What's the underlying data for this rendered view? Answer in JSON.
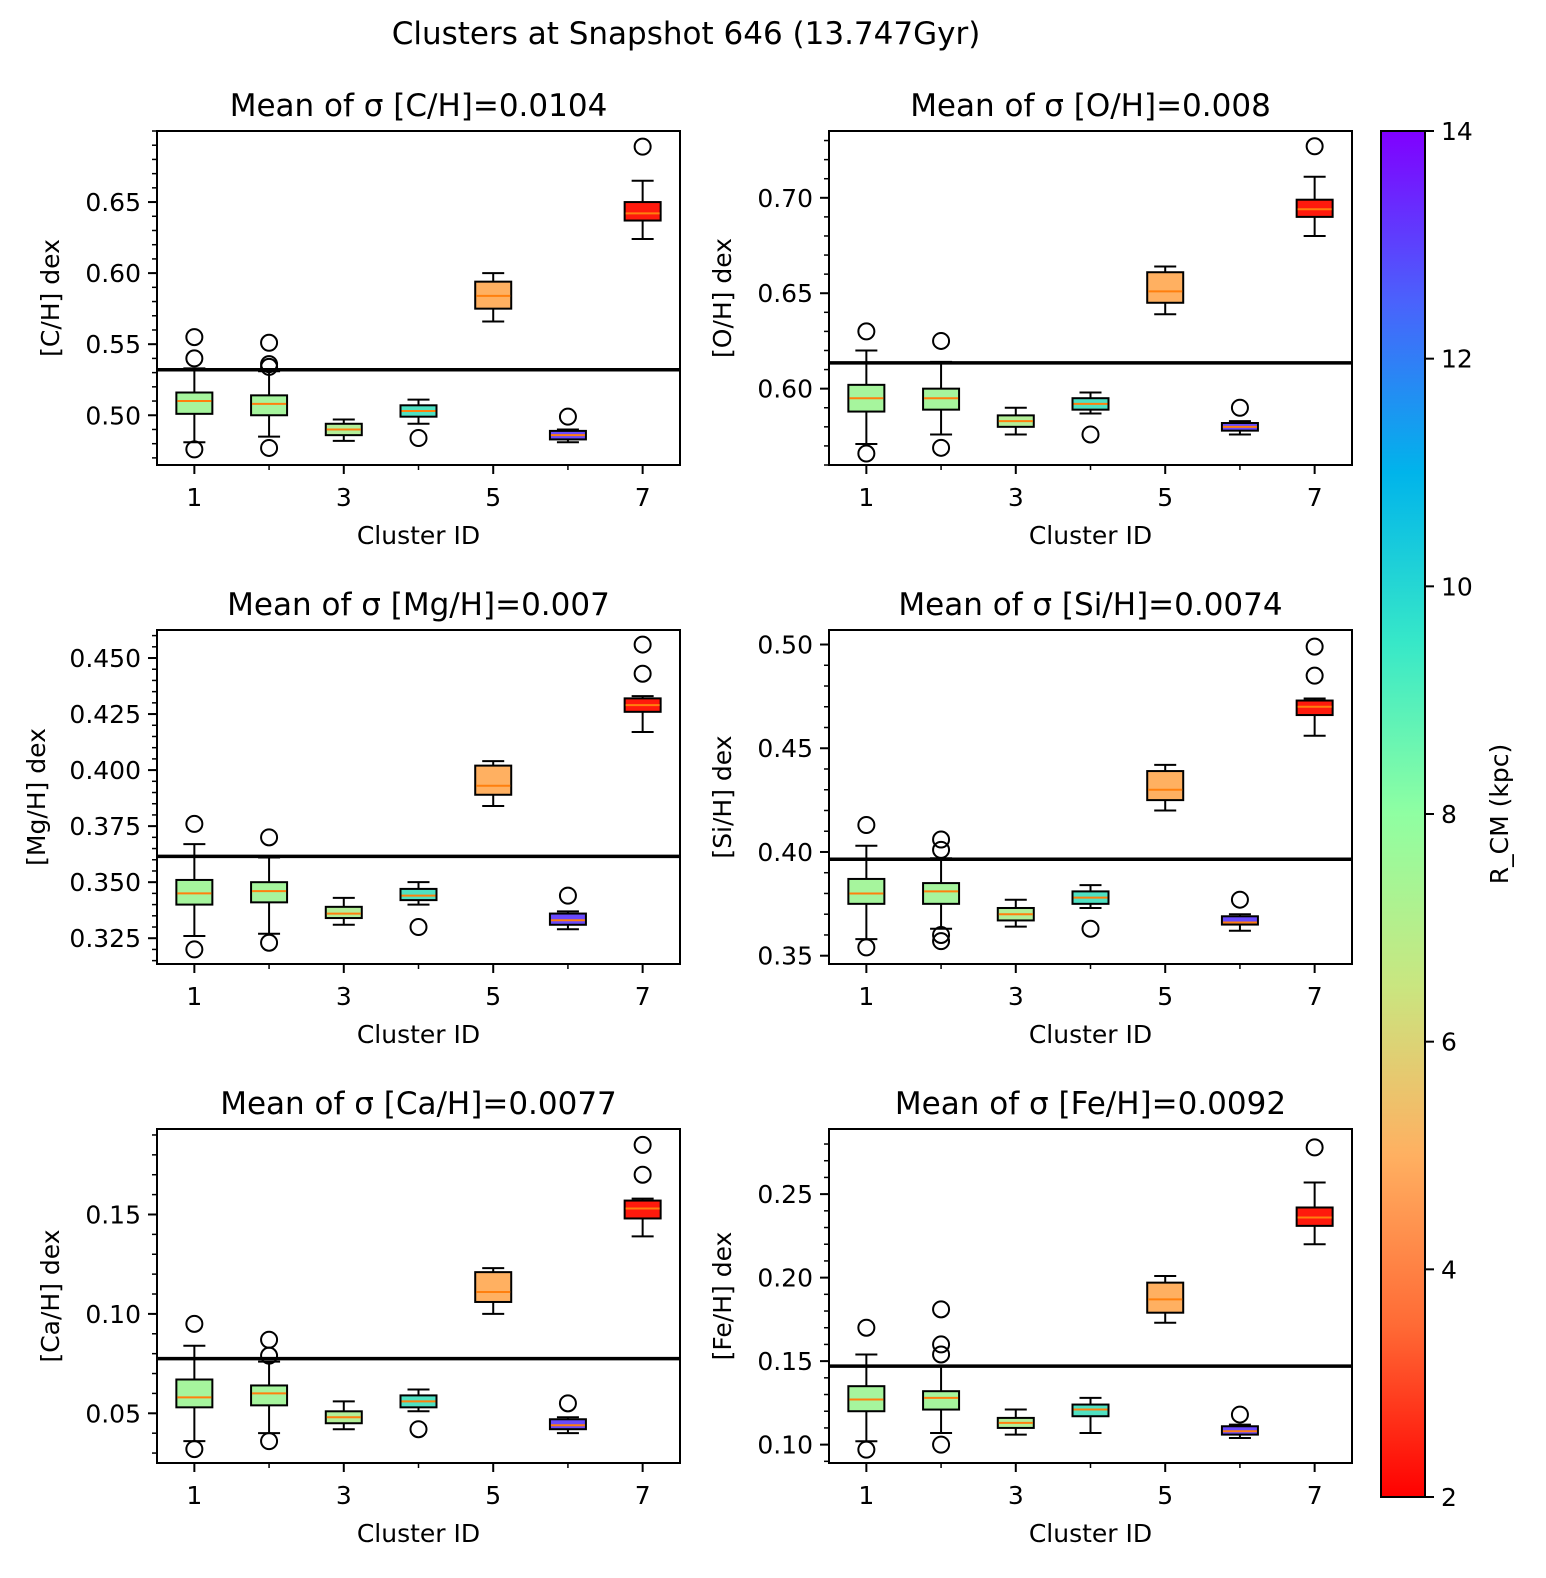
{
  "suptitle": "Clusters at Snapshot 646 (13.747Gyr)",
  "colorbar": {
    "label": "R_CM (kpc)",
    "min": 2,
    "max": 14,
    "ticks": [
      2,
      4,
      6,
      8,
      10,
      12,
      14
    ],
    "colormap": "rainbow",
    "stops": [
      "#ff0000",
      "#ff6a35",
      "#ffb061",
      "#c9e680",
      "#8fffa2",
      "#37e8c8",
      "#00b4eb",
      "#4a62fc",
      "#8000ff"
    ]
  },
  "chart_data": [
    {
      "type": "boxplot",
      "title": "Mean of σ [C/H]=0.0104",
      "xlabel": "Cluster ID",
      "ylabel": "[C/H] dex",
      "ylim": [
        0.465,
        0.7
      ],
      "yticks": [
        0.5,
        0.55,
        0.6,
        0.65
      ],
      "ytick_labels": [
        "0.50",
        "0.55",
        "0.60",
        "0.65"
      ],
      "minor_step": 0.01,
      "xticks": [
        1,
        3,
        5,
        7
      ],
      "xlim": [
        0.5,
        7.5
      ],
      "hline": 0.532,
      "boxes": [
        {
          "cluster": 1,
          "color": "#a6f59d",
          "whislo": 0.481,
          "q1": 0.501,
          "med": 0.51,
          "q3": 0.516,
          "whishi": 0.533,
          "fliers": [
            0.476,
            0.54,
            0.555
          ]
        },
        {
          "cluster": 2,
          "color": "#a6f59d",
          "whislo": 0.485,
          "q1": 0.5,
          "med": 0.508,
          "q3": 0.514,
          "whishi": 0.531,
          "fliers": [
            0.477,
            0.534,
            0.536,
            0.551
          ]
        },
        {
          "cluster": 3,
          "color": "#b3ef98",
          "whislo": 0.482,
          "q1": 0.486,
          "med": 0.49,
          "q3": 0.494,
          "whishi": 0.497,
          "fliers": []
        },
        {
          "cluster": 4,
          "color": "#4fe1c2",
          "whislo": 0.494,
          "q1": 0.499,
          "med": 0.503,
          "q3": 0.507,
          "whishi": 0.511,
          "fliers": [
            0.484
          ]
        },
        {
          "cluster": 5,
          "color": "#ffb061",
          "whislo": 0.566,
          "q1": 0.575,
          "med": 0.584,
          "q3": 0.594,
          "whishi": 0.6,
          "fliers": []
        },
        {
          "cluster": 6,
          "color": "#6a4afd",
          "whislo": 0.481,
          "q1": 0.483,
          "med": 0.486,
          "q3": 0.489,
          "whishi": 0.49,
          "fliers": [
            0.499
          ]
        },
        {
          "cluster": 7,
          "color": "#ff1a0d",
          "whislo": 0.624,
          "q1": 0.637,
          "med": 0.642,
          "q3": 0.65,
          "whishi": 0.665,
          "fliers": [
            0.689
          ]
        }
      ]
    },
    {
      "type": "boxplot",
      "title": "Mean of σ [O/H]=0.008",
      "xlabel": "Cluster ID",
      "ylabel": "[O/H] dex",
      "ylim": [
        0.56,
        0.735
      ],
      "yticks": [
        0.6,
        0.65,
        0.7
      ],
      "ytick_labels": [
        "0.60",
        "0.65",
        "0.70"
      ],
      "minor_step": 0.01,
      "xticks": [
        1,
        3,
        5,
        7
      ],
      "xlim": [
        0.5,
        7.5
      ],
      "hline": 0.6135,
      "boxes": [
        {
          "cluster": 1,
          "color": "#a6f59d",
          "whislo": 0.571,
          "q1": 0.588,
          "med": 0.595,
          "q3": 0.602,
          "whishi": 0.62,
          "fliers": [
            0.566,
            0.63
          ]
        },
        {
          "cluster": 2,
          "color": "#a6f59d",
          "whislo": 0.576,
          "q1": 0.589,
          "med": 0.595,
          "q3": 0.6,
          "whishi": 0.614,
          "fliers": [
            0.569,
            0.625
          ]
        },
        {
          "cluster": 3,
          "color": "#b3ef98",
          "whislo": 0.576,
          "q1": 0.58,
          "med": 0.583,
          "q3": 0.586,
          "whishi": 0.59,
          "fliers": []
        },
        {
          "cluster": 4,
          "color": "#4fe1c2",
          "whislo": 0.587,
          "q1": 0.589,
          "med": 0.592,
          "q3": 0.595,
          "whishi": 0.598,
          "fliers": [
            0.576
          ]
        },
        {
          "cluster": 5,
          "color": "#ffb061",
          "whislo": 0.639,
          "q1": 0.645,
          "med": 0.651,
          "q3": 0.661,
          "whishi": 0.664,
          "fliers": []
        },
        {
          "cluster": 6,
          "color": "#6a4afd",
          "whislo": 0.576,
          "q1": 0.578,
          "med": 0.58,
          "q3": 0.582,
          "whishi": 0.583,
          "fliers": [
            0.59
          ]
        },
        {
          "cluster": 7,
          "color": "#ff1a0d",
          "whislo": 0.68,
          "q1": 0.69,
          "med": 0.694,
          "q3": 0.699,
          "whishi": 0.711,
          "fliers": [
            0.727
          ]
        }
      ]
    },
    {
      "type": "boxplot",
      "title": "Mean of σ [Mg/H]=0.007",
      "xlabel": "Cluster ID",
      "ylabel": "[Mg/H] dex",
      "ylim": [
        0.3135,
        0.4625
      ],
      "yticks": [
        0.325,
        0.35,
        0.375,
        0.4,
        0.425,
        0.45
      ],
      "ytick_labels": [
        "0.325",
        "0.350",
        "0.375",
        "0.400",
        "0.425",
        "0.450"
      ],
      "minor_step": 0.005,
      "xticks": [
        1,
        3,
        5,
        7
      ],
      "xlim": [
        0.5,
        7.5
      ],
      "hline": 0.3615,
      "boxes": [
        {
          "cluster": 1,
          "color": "#a6f59d",
          "whislo": 0.326,
          "q1": 0.34,
          "med": 0.345,
          "q3": 0.351,
          "whishi": 0.367,
          "fliers": [
            0.32,
            0.376
          ]
        },
        {
          "cluster": 2,
          "color": "#a6f59d",
          "whislo": 0.327,
          "q1": 0.341,
          "med": 0.346,
          "q3": 0.35,
          "whishi": 0.361,
          "fliers": [
            0.323,
            0.37
          ]
        },
        {
          "cluster": 3,
          "color": "#b3ef98",
          "whislo": 0.331,
          "q1": 0.334,
          "med": 0.336,
          "q3": 0.339,
          "whishi": 0.343,
          "fliers": []
        },
        {
          "cluster": 4,
          "color": "#4fe1c2",
          "whislo": 0.34,
          "q1": 0.342,
          "med": 0.344,
          "q3": 0.347,
          "whishi": 0.35,
          "fliers": [
            0.33
          ]
        },
        {
          "cluster": 5,
          "color": "#ffb061",
          "whislo": 0.384,
          "q1": 0.389,
          "med": 0.393,
          "q3": 0.402,
          "whishi": 0.404,
          "fliers": []
        },
        {
          "cluster": 6,
          "color": "#6a4afd",
          "whislo": 0.329,
          "q1": 0.331,
          "med": 0.333,
          "q3": 0.336,
          "whishi": 0.337,
          "fliers": [
            0.344
          ]
        },
        {
          "cluster": 7,
          "color": "#ff1a0d",
          "whislo": 0.417,
          "q1": 0.426,
          "med": 0.429,
          "q3": 0.432,
          "whishi": 0.433,
          "fliers": [
            0.443,
            0.456
          ]
        }
      ]
    },
    {
      "type": "boxplot",
      "title": "Mean of σ [Si/H]=0.0074",
      "xlabel": "Cluster ID",
      "ylabel": "[Si/H] dex",
      "ylim": [
        0.346,
        0.507
      ],
      "yticks": [
        0.35,
        0.4,
        0.45,
        0.5
      ],
      "ytick_labels": [
        "0.35",
        "0.40",
        "0.45",
        "0.50"
      ],
      "minor_step": 0.01,
      "xticks": [
        1,
        3,
        5,
        7
      ],
      "xlim": [
        0.5,
        7.5
      ],
      "hline": 0.3965,
      "boxes": [
        {
          "cluster": 1,
          "color": "#a6f59d",
          "whislo": 0.358,
          "q1": 0.375,
          "med": 0.38,
          "q3": 0.387,
          "whishi": 0.403,
          "fliers": [
            0.354,
            0.413
          ]
        },
        {
          "cluster": 2,
          "color": "#a6f59d",
          "whislo": 0.363,
          "q1": 0.375,
          "med": 0.381,
          "q3": 0.385,
          "whishi": 0.397,
          "fliers": [
            0.357,
            0.36,
            0.401,
            0.406
          ]
        },
        {
          "cluster": 3,
          "color": "#b3ef98",
          "whislo": 0.364,
          "q1": 0.367,
          "med": 0.37,
          "q3": 0.373,
          "whishi": 0.377,
          "fliers": []
        },
        {
          "cluster": 4,
          "color": "#4fe1c2",
          "whislo": 0.373,
          "q1": 0.375,
          "med": 0.378,
          "q3": 0.381,
          "whishi": 0.384,
          "fliers": [
            0.363
          ]
        },
        {
          "cluster": 5,
          "color": "#ffb061",
          "whislo": 0.42,
          "q1": 0.425,
          "med": 0.43,
          "q3": 0.439,
          "whishi": 0.442,
          "fliers": []
        },
        {
          "cluster": 6,
          "color": "#6a4afd",
          "whislo": 0.362,
          "q1": 0.365,
          "med": 0.366,
          "q3": 0.369,
          "whishi": 0.37,
          "fliers": [
            0.377
          ]
        },
        {
          "cluster": 7,
          "color": "#ff1a0d",
          "whislo": 0.456,
          "q1": 0.466,
          "med": 0.47,
          "q3": 0.473,
          "whishi": 0.474,
          "fliers": [
            0.485,
            0.499
          ]
        }
      ]
    },
    {
      "type": "boxplot",
      "title": "Mean of σ [Ca/H]=0.0077",
      "xlabel": "Cluster ID",
      "ylabel": "[Ca/H] dex",
      "ylim": [
        0.025,
        0.193
      ],
      "yticks": [
        0.05,
        0.1,
        0.15
      ],
      "ytick_labels": [
        "0.05",
        "0.10",
        "0.15"
      ],
      "minor_step": 0.01,
      "xticks": [
        1,
        3,
        5,
        7
      ],
      "xlim": [
        0.5,
        7.5
      ],
      "hline": 0.0775,
      "boxes": [
        {
          "cluster": 1,
          "color": "#a6f59d",
          "whislo": 0.036,
          "q1": 0.053,
          "med": 0.058,
          "q3": 0.067,
          "whishi": 0.084,
          "fliers": [
            0.032,
            0.095
          ]
        },
        {
          "cluster": 2,
          "color": "#a6f59d",
          "whislo": 0.04,
          "q1": 0.054,
          "med": 0.06,
          "q3": 0.064,
          "whishi": 0.076,
          "fliers": [
            0.036,
            0.079,
            0.087
          ]
        },
        {
          "cluster": 3,
          "color": "#b3ef98",
          "whislo": 0.042,
          "q1": 0.045,
          "med": 0.048,
          "q3": 0.051,
          "whishi": 0.056,
          "fliers": []
        },
        {
          "cluster": 4,
          "color": "#4fe1c2",
          "whislo": 0.051,
          "q1": 0.053,
          "med": 0.056,
          "q3": 0.059,
          "whishi": 0.062,
          "fliers": [
            0.042
          ]
        },
        {
          "cluster": 5,
          "color": "#ffb061",
          "whislo": 0.1,
          "q1": 0.106,
          "med": 0.111,
          "q3": 0.121,
          "whishi": 0.123,
          "fliers": []
        },
        {
          "cluster": 6,
          "color": "#6a4afd",
          "whislo": 0.04,
          "q1": 0.042,
          "med": 0.044,
          "q3": 0.047,
          "whishi": 0.048,
          "fliers": [
            0.055
          ]
        },
        {
          "cluster": 7,
          "color": "#ff1a0d",
          "whislo": 0.139,
          "q1": 0.148,
          "med": 0.153,
          "q3": 0.157,
          "whishi": 0.158,
          "fliers": [
            0.17,
            0.185
          ]
        }
      ]
    },
    {
      "type": "boxplot",
      "title": "Mean of σ [Fe/H]=0.0092",
      "xlabel": "Cluster ID",
      "ylabel": "[Fe/H] dex",
      "ylim": [
        0.089,
        0.289
      ],
      "yticks": [
        0.1,
        0.15,
        0.2,
        0.25
      ],
      "ytick_labels": [
        "0.10",
        "0.15",
        "0.20",
        "0.25"
      ],
      "minor_step": 0.01,
      "xticks": [
        1,
        3,
        5,
        7
      ],
      "xlim": [
        0.5,
        7.5
      ],
      "hline": 0.147,
      "boxes": [
        {
          "cluster": 1,
          "color": "#a6f59d",
          "whislo": 0.102,
          "q1": 0.12,
          "med": 0.127,
          "q3": 0.135,
          "whishi": 0.154,
          "fliers": [
            0.097,
            0.17
          ]
        },
        {
          "cluster": 2,
          "color": "#a6f59d",
          "whislo": 0.107,
          "q1": 0.121,
          "med": 0.128,
          "q3": 0.132,
          "whishi": 0.147,
          "fliers": [
            0.1,
            0.154,
            0.16,
            0.181
          ]
        },
        {
          "cluster": 3,
          "color": "#b3ef98",
          "whislo": 0.106,
          "q1": 0.11,
          "med": 0.113,
          "q3": 0.116,
          "whishi": 0.121,
          "fliers": []
        },
        {
          "cluster": 4,
          "color": "#4fe1c2",
          "whislo": 0.107,
          "q1": 0.117,
          "med": 0.121,
          "q3": 0.124,
          "whishi": 0.128,
          "fliers": []
        },
        {
          "cluster": 5,
          "color": "#ffb061",
          "whislo": 0.173,
          "q1": 0.179,
          "med": 0.187,
          "q3": 0.197,
          "whishi": 0.201,
          "fliers": []
        },
        {
          "cluster": 6,
          "color": "#6a4afd",
          "whislo": 0.104,
          "q1": 0.106,
          "med": 0.108,
          "q3": 0.111,
          "whishi": 0.112,
          "fliers": [
            0.118
          ]
        },
        {
          "cluster": 7,
          "color": "#ff1a0d",
          "whislo": 0.22,
          "q1": 0.231,
          "med": 0.236,
          "q3": 0.242,
          "whishi": 0.257,
          "fliers": [
            0.278
          ]
        }
      ]
    }
  ]
}
